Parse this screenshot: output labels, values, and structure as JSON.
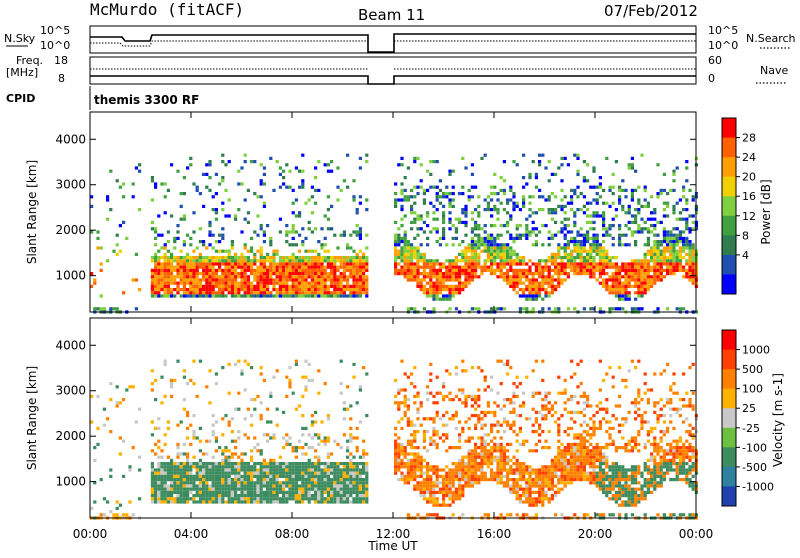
{
  "header": {
    "station": "McMurdo (fitACF)",
    "beam": "Beam 11",
    "date": "07/Feb/2012"
  },
  "top_panel": {
    "left_label": "N.Sky",
    "left_ticks": [
      "10^5",
      "10^0"
    ],
    "right_ticks": [
      "10^5",
      "10^0"
    ],
    "right_label": "N.Search",
    "series": [
      {
        "name": "N.Sky",
        "style": "solid"
      },
      {
        "name": "N.Search",
        "style": "dotted"
      }
    ]
  },
  "freq_panel": {
    "left_label_1": "Freq.",
    "left_label_2": "[MHz]",
    "left_ticks": [
      "18",
      "8"
    ],
    "right_ticks": [
      "60",
      "0"
    ],
    "right_label": "Nave",
    "series": [
      {
        "name": "Freq.",
        "style": "solid"
      },
      {
        "name": "Nave",
        "style": "dotted"
      }
    ]
  },
  "cpid": {
    "label": "CPID",
    "text": "themis 3300 RF"
  },
  "chart_data": [
    {
      "type": "heatmap",
      "panel": "power",
      "ylabel": "Slant Range [km]",
      "yticks": [
        1000,
        2000,
        3000,
        4000
      ],
      "ylim": [
        200,
        4600
      ],
      "xlim_hours": [
        0,
        24
      ],
      "data_gap_hours": [
        11.0,
        12.0
      ],
      "colorbar_label": "Power [dB]",
      "colorbar_ticks": [
        "28",
        "24",
        "20",
        "16",
        "12",
        "8",
        "4"
      ],
      "colors": [
        "#0000ff",
        "#1f4fb0",
        "#2f7d4f",
        "#3fa03f",
        "#7fcf3f",
        "#f0d000",
        "#ffa000",
        "#ff6000",
        "#ff0000"
      ]
    },
    {
      "type": "heatmap",
      "panel": "velocity",
      "ylabel": "Slant Range [km]",
      "yticks": [
        1000,
        2000,
        3000,
        4000
      ],
      "ylim": [
        200,
        4600
      ],
      "xlim_hours": [
        0,
        24
      ],
      "data_gap_hours": [
        11.0,
        12.0
      ],
      "colorbar_label": "Velocity [m s-1]",
      "colorbar_ticks": [
        "1000",
        "500",
        "100",
        "25",
        "-25",
        "-100",
        "-500",
        "-1000"
      ],
      "colors": [
        "#2040b0",
        "#3080a0",
        "#3c8c60",
        "#6cc040",
        "#c8c8c8",
        "#ffb000",
        "#ff8000",
        "#ff4000",
        "#ff0000"
      ]
    }
  ],
  "x_axis": {
    "label": "Time UT",
    "ticks": [
      "00:00",
      "04:00",
      "08:00",
      "12:00",
      "16:00",
      "20:00",
      "00:00"
    ]
  }
}
